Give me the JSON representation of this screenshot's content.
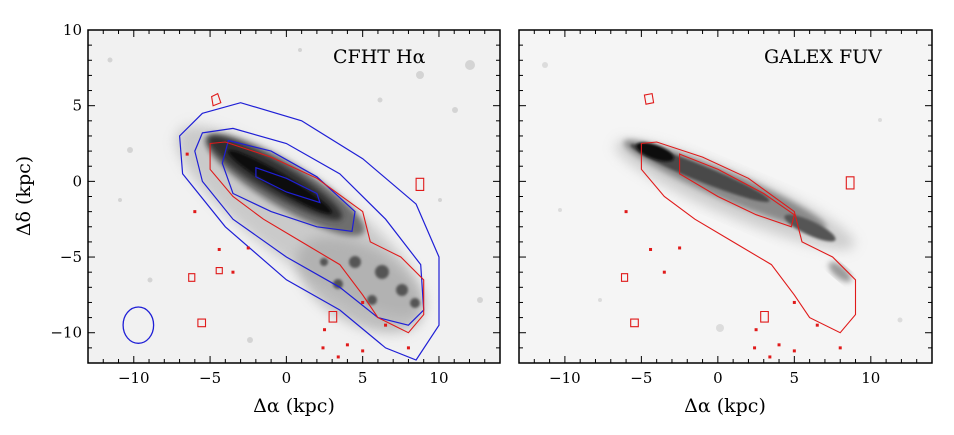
{
  "chart_data": [
    {
      "type": "image",
      "panel_label": "CFHT Hα",
      "xlabel": "Δα (kpc)",
      "ylabel": "Δδ (kpc)",
      "xlim": [
        -13,
        14
      ],
      "ylim": [
        -12,
        10
      ],
      "xticks": [
        -10,
        -5,
        0,
        5,
        10
      ],
      "xtick_labels": [
        "−10",
        "−5",
        "0",
        "5",
        "10"
      ],
      "yticks": [
        10,
        5,
        0,
        -5,
        -10
      ],
      "ytick_labels": [
        "10",
        "5",
        "0",
        "−5",
        "−10"
      ],
      "beam": {
        "x": -9.7,
        "y": -9.5,
        "rx": 1.0,
        "ry": 1.2
      },
      "blue_contours": [
        [
          [
            -5.5,
            4.5
          ],
          [
            -3,
            5.2
          ],
          [
            1,
            4
          ],
          [
            5,
            1.5
          ],
          [
            8.5,
            -1.5
          ],
          [
            10,
            -5
          ],
          [
            10,
            -9.5
          ],
          [
            8.5,
            -11.8
          ],
          [
            6.5,
            -11
          ],
          [
            3.5,
            -8.5
          ],
          [
            0,
            -6.5
          ],
          [
            -4,
            -3
          ],
          [
            -6.8,
            0.5
          ],
          [
            -7,
            3
          ]
        ],
        [
          [
            -5.5,
            3.2
          ],
          [
            -3.5,
            3.5
          ],
          [
            0,
            2.5
          ],
          [
            3.5,
            0.5
          ],
          [
            6.5,
            -2.5
          ],
          [
            8.8,
            -5.5
          ],
          [
            9,
            -8.5
          ],
          [
            8,
            -9.5
          ],
          [
            6,
            -9
          ],
          [
            3.5,
            -7
          ],
          [
            0,
            -5
          ],
          [
            -3.5,
            -2.5
          ],
          [
            -5.5,
            0
          ],
          [
            -6,
            2
          ]
        ],
        [
          [
            -3.8,
            2.7
          ],
          [
            -1,
            2
          ],
          [
            2,
            0.3
          ],
          [
            4.5,
            -2
          ],
          [
            4.3,
            -3.3
          ],
          [
            2,
            -3
          ],
          [
            -1,
            -2
          ],
          [
            -3.5,
            -0.8
          ],
          [
            -4.2,
            1.2
          ]
        ],
        [
          [
            -2,
            0.9
          ],
          [
            0,
            0.2
          ],
          [
            2,
            -0.8
          ],
          [
            2.2,
            -1.4
          ],
          [
            0,
            -0.7
          ],
          [
            -2,
            0.3
          ]
        ]
      ],
      "red_contours": [
        [
          [
            -5,
            2.5
          ],
          [
            -4,
            2.6
          ],
          [
            -1,
            1.6
          ],
          [
            2,
            0.2
          ],
          [
            5,
            -2
          ],
          [
            5.5,
            -4
          ],
          [
            7.5,
            -5
          ],
          [
            9,
            -6.5
          ],
          [
            9,
            -8.8
          ],
          [
            8,
            -10
          ],
          [
            6,
            -9
          ],
          [
            5,
            -7.5
          ],
          [
            3.5,
            -5.5
          ],
          [
            1,
            -4
          ],
          [
            -1.5,
            -2.5
          ],
          [
            -3.5,
            -1
          ],
          [
            -5,
            0.8
          ]
        ],
        [
          [
            -4.9,
            5.6
          ],
          [
            -4.5,
            5.8
          ],
          [
            -4.3,
            5.2
          ],
          [
            -4.8,
            5.0
          ]
        ],
        [
          [
            -6.4,
            -6.1
          ],
          [
            -6.0,
            -6.1
          ],
          [
            -6.0,
            -6.6
          ],
          [
            -6.4,
            -6.6
          ]
        ],
        [
          [
            -4.6,
            -5.7
          ],
          [
            -4.2,
            -5.7
          ],
          [
            -4.2,
            -6.1
          ],
          [
            -4.6,
            -6.1
          ]
        ],
        [
          [
            -5.8,
            -9.1
          ],
          [
            -5.3,
            -9.1
          ],
          [
            -5.3,
            -9.6
          ],
          [
            -5.8,
            -9.6
          ]
        ],
        [
          [
            8.5,
            0.2
          ],
          [
            9.0,
            0.2
          ],
          [
            9.0,
            -0.6
          ],
          [
            8.5,
            -0.6
          ]
        ],
        [
          [
            2.8,
            -8.6
          ],
          [
            3.3,
            -8.6
          ],
          [
            3.3,
            -9.3
          ],
          [
            2.8,
            -9.3
          ]
        ]
      ],
      "red_specks": [
        [
          -6,
          -2
        ],
        [
          -4.4,
          -4.5
        ],
        [
          -2.5,
          -4.4
        ],
        [
          -3.5,
          -6
        ],
        [
          2.5,
          -9.8
        ],
        [
          2.4,
          -11
        ],
        [
          3.4,
          -11.6
        ],
        [
          4,
          -10.8
        ],
        [
          5,
          -11.2
        ],
        [
          -6.5,
          1.8
        ],
        [
          5,
          -8
        ],
        [
          6.5,
          -9.5
        ],
        [
          8,
          -11
        ]
      ]
    },
    {
      "type": "image",
      "panel_label": "GALEX FUV",
      "xlabel": "Δα (kpc)",
      "ylabel": "",
      "xlim": [
        -13,
        14
      ],
      "ylim": [
        -12,
        10
      ],
      "xticks": [
        -10,
        -5,
        0,
        5,
        10
      ],
      "xtick_labels": [
        "−10",
        "−5",
        "0",
        "5",
        "10"
      ],
      "yticks": [
        10,
        5,
        0,
        -5,
        -10
      ],
      "ytick_labels": [],
      "blue_contours": [],
      "red_contours": [
        [
          [
            -5,
            2.5
          ],
          [
            -4,
            2.6
          ],
          [
            -1,
            1.6
          ],
          [
            2,
            0.2
          ],
          [
            5,
            -2
          ],
          [
            5.5,
            -4
          ],
          [
            7.5,
            -5
          ],
          [
            9,
            -6.5
          ],
          [
            9,
            -8.8
          ],
          [
            8,
            -10
          ],
          [
            6,
            -9
          ],
          [
            5,
            -7.5
          ],
          [
            3.5,
            -5.5
          ],
          [
            1,
            -4
          ],
          [
            -1.5,
            -2.5
          ],
          [
            -3.5,
            -1
          ],
          [
            -5,
            0.8
          ]
        ],
        [
          [
            -2.5,
            1.8
          ],
          [
            0,
            0.8
          ],
          [
            3,
            -0.8
          ],
          [
            5,
            -2.2
          ],
          [
            4.8,
            -3
          ],
          [
            2.5,
            -2.2
          ],
          [
            0,
            -1
          ],
          [
            -2.5,
            0.5
          ]
        ],
        [
          [
            -4.8,
            5.7
          ],
          [
            -4.3,
            5.8
          ],
          [
            -4.2,
            5.2
          ],
          [
            -4.7,
            5.1
          ]
        ],
        [
          [
            -6.3,
            -6.1
          ],
          [
            -5.9,
            -6.1
          ],
          [
            -5.9,
            -6.6
          ],
          [
            -6.3,
            -6.6
          ]
        ],
        [
          [
            -5.7,
            -9.1
          ],
          [
            -5.2,
            -9.1
          ],
          [
            -5.2,
            -9.6
          ],
          [
            -5.7,
            -9.6
          ]
        ],
        [
          [
            8.4,
            0.3
          ],
          [
            8.9,
            0.3
          ],
          [
            8.9,
            -0.5
          ],
          [
            8.4,
            -0.5
          ]
        ],
        [
          [
            2.8,
            -8.6
          ],
          [
            3.3,
            -8.6
          ],
          [
            3.3,
            -9.3
          ],
          [
            2.8,
            -9.3
          ]
        ]
      ],
      "red_specks": [
        [
          -6,
          -2
        ],
        [
          -4.4,
          -4.5
        ],
        [
          -2.5,
          -4.4
        ],
        [
          -3.5,
          -6
        ],
        [
          2.5,
          -9.8
        ],
        [
          2.4,
          -11
        ],
        [
          3.4,
          -11.6
        ],
        [
          4,
          -10.8
        ],
        [
          5,
          -11.2
        ],
        [
          5,
          -8
        ],
        [
          6.5,
          -9.5
        ],
        [
          8,
          -11
        ]
      ]
    }
  ],
  "colors": {
    "blue_contour": "#1f1fd6",
    "red_contour": "#e01a1a",
    "frame": "#000000"
  }
}
